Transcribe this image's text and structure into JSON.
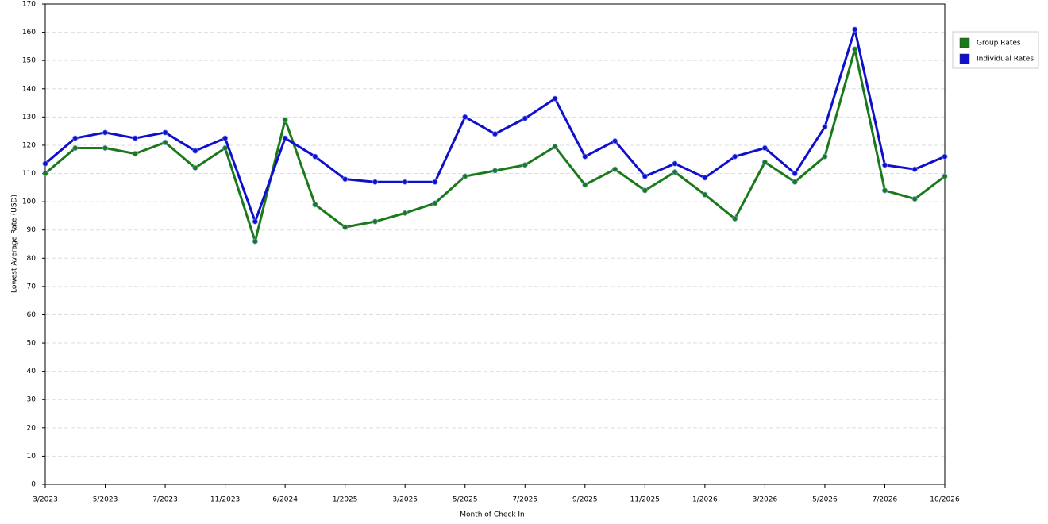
{
  "chart_data": {
    "type": "line",
    "x_label": "Month of Check In",
    "y_label": "Lowest Average Rate (USD)",
    "categories": [
      "3/2023",
      null,
      "5/2023",
      null,
      "7/2023",
      null,
      "11/2023",
      null,
      "6/2024",
      null,
      "1/2025",
      null,
      "3/2025",
      null,
      "5/2025",
      null,
      "7/2025",
      null,
      "9/2025",
      null,
      "11/2025",
      null,
      "1/2026",
      null,
      "3/2026",
      null,
      "5/2026",
      null,
      "7/2026",
      null,
      "10/2026"
    ],
    "series": [
      {
        "name": "Group Rates",
        "color": "#1a7a1a",
        "values": [
          110,
          119,
          119,
          117,
          121,
          112,
          119,
          86,
          129,
          99,
          91,
          93,
          96,
          99.5,
          109,
          111,
          113,
          119.5,
          106,
          111.5,
          104,
          110.5,
          102.5,
          94,
          114,
          107,
          116,
          154,
          104,
          101,
          109
        ]
      },
      {
        "name": "Individual Rates",
        "color": "#1010cc",
        "values": [
          113.5,
          122.5,
          124.5,
          122.5,
          124.5,
          118,
          122.5,
          93,
          122.5,
          116,
          108,
          107,
          107,
          107,
          130,
          124,
          129.5,
          136.5,
          116,
          121.5,
          109,
          113.5,
          108.5,
          116,
          119,
          110,
          126.5,
          161,
          113,
          111.5,
          116
        ]
      }
    ],
    "ylim": [
      0,
      170
    ],
    "yticks": [
      0,
      10,
      20,
      30,
      40,
      50,
      60,
      70,
      80,
      90,
      100,
      110,
      120,
      130,
      140,
      150,
      160,
      170
    ],
    "grid": true,
    "legend": "right"
  }
}
